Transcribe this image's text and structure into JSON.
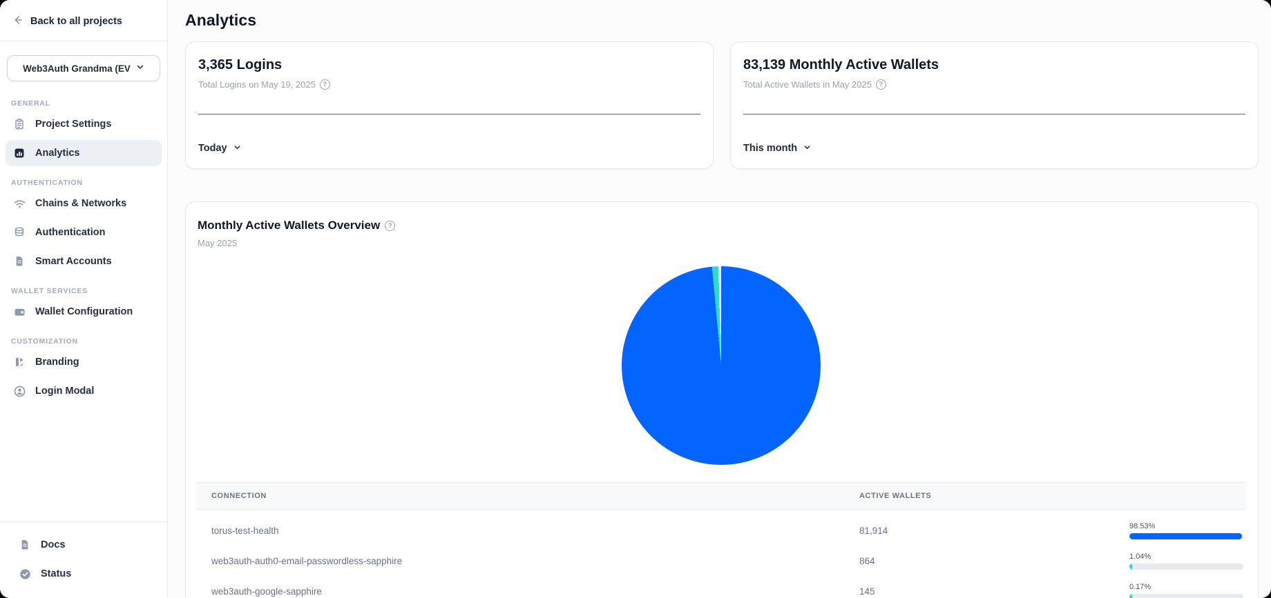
{
  "sidebar": {
    "back_label": "Back to all projects",
    "project_selector": {
      "value": "Web3Auth Grandma (EV"
    },
    "sections": [
      {
        "label": "GENERAL",
        "items": [
          {
            "label": "Project Settings",
            "icon": "clipboard-icon",
            "active": false
          },
          {
            "label": "Analytics",
            "icon": "bar-chart-icon",
            "active": true
          }
        ]
      },
      {
        "label": "AUTHENTICATION",
        "items": [
          {
            "label": "Chains & Networks",
            "icon": "wifi-icon",
            "active": false
          },
          {
            "label": "Authentication",
            "icon": "database-icon",
            "active": false
          },
          {
            "label": "Smart Accounts",
            "icon": "document-icon",
            "active": false
          }
        ]
      },
      {
        "label": "WALLET SERVICES",
        "items": [
          {
            "label": "Wallet Configuration",
            "icon": "wallet-icon",
            "active": false
          }
        ]
      },
      {
        "label": "CUSTOMIZATION",
        "items": [
          {
            "label": "Branding",
            "icon": "brush-icon",
            "active": false
          },
          {
            "label": "Login Modal",
            "icon": "user-circle-icon",
            "active": false
          }
        ]
      }
    ],
    "footer_items": [
      {
        "label": "Docs",
        "icon": "document-icon"
      },
      {
        "label": "Status",
        "icon": "check-circle-icon"
      }
    ]
  },
  "header": {
    "title": "Analytics"
  },
  "stat_cards": [
    {
      "title": "3,365 Logins",
      "subtitle": "Total Logins on May 19, 2025",
      "range_label": "Today"
    },
    {
      "title": "83,139 Monthly Active Wallets",
      "subtitle": "Total Active Wallets in May 2025",
      "range_label": "This month"
    }
  ],
  "overview_card": {
    "title": "Monthly Active Wallets Overview",
    "subtitle": "May 2025"
  },
  "chart_data": {
    "type": "pie",
    "title": "Monthly Active Wallets Overview",
    "subtitle": "May 2025",
    "labels": [
      "torus-test-health",
      "web3auth-auth0-email-passwordless-sapphire",
      "web3auth-google-sapphire"
    ],
    "values": [
      81914,
      864,
      145
    ],
    "percentages": [
      98.53,
      1.04,
      0.17
    ],
    "colors": [
      "#0364ff",
      "#2edbc4",
      "#ffffff"
    ],
    "total": 83139,
    "legend_position": "none"
  },
  "table": {
    "columns": [
      "CONNECTION",
      "ACTIVE WALLETS"
    ],
    "rows": [
      {
        "connection": "torus-test-health",
        "active_wallets": "81,914",
        "percent": "98.53%",
        "percent_value": 98.53,
        "bar_color": "#0364ff"
      },
      {
        "connection": "web3auth-auth0-email-passwordless-sapphire",
        "active_wallets": "864",
        "percent": "1.04%",
        "percent_value": 1.04,
        "bar_color": "#2edbc4"
      },
      {
        "connection": "web3auth-google-sapphire",
        "active_wallets": "145",
        "percent": "0.17%",
        "percent_value": 0.17,
        "bar_color": "#2edbc4"
      }
    ]
  }
}
